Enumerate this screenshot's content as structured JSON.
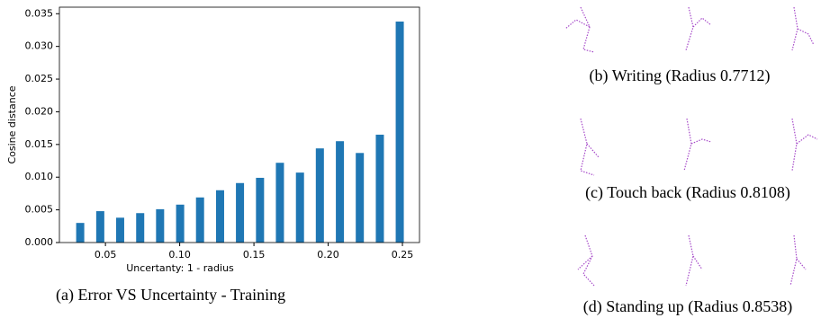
{
  "chart_data": {
    "type": "bar",
    "x": [
      0.033,
      0.0465,
      0.0599,
      0.0734,
      0.0868,
      0.1003,
      0.1137,
      0.1272,
      0.1406,
      0.1541,
      0.1675,
      0.181,
      0.1944,
      0.2079,
      0.2213,
      0.2348,
      0.2482
    ],
    "values": [
      0.003,
      0.0048,
      0.0038,
      0.0045,
      0.0051,
      0.0058,
      0.0069,
      0.008,
      0.0091,
      0.0099,
      0.0122,
      0.0107,
      0.0144,
      0.0155,
      0.0137,
      0.0165,
      0.0338
    ],
    "color": "#1f77b4",
    "xlabel": "Uncertanty: 1 - radius",
    "ylabel": "Cosine distance",
    "xlim": [
      0.019,
      0.2615
    ],
    "ylim": [
      0,
      0.036
    ],
    "xticks": [
      0.05,
      {
        "value": 0.1,
        "label": "0.10"
      },
      0.15,
      {
        "value": 0.2,
        "label": "0.20"
      },
      0.25
    ],
    "yticks": [
      {
        "value": 0,
        "label": "0.000"
      },
      0.005,
      {
        "value": 0.01,
        "label": "0.010"
      },
      0.015,
      {
        "value": 0.02,
        "label": "0.020"
      },
      0.025,
      {
        "value": 0.03,
        "label": "0.030"
      },
      0.035
    ],
    "caption": "(a)  Error VS Uncertainty - Training"
  },
  "panels": [
    {
      "caption": "(b) Writing (Radius 0.7712)"
    },
    {
      "caption": "(c) Touch back (Radius 0.8108)"
    },
    {
      "caption": "(d) Standing up (Radius 0.8538)"
    }
  ]
}
